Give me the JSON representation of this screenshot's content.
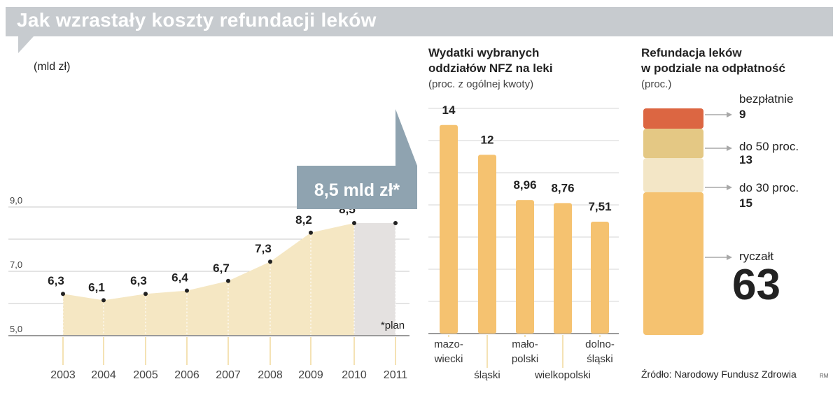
{
  "title": "Jak wzrastały koszty refundacji leków",
  "colors": {
    "banner": "#c7cbcf",
    "area": "#f5e7c3",
    "plan_area": "#e4e1e0",
    "bar": "#f5c270",
    "callout": "#8fa3b0",
    "seg_free": "#dc6642",
    "seg_50": "#e4c884",
    "seg_30": "#f3e6c6",
    "seg_flat": "#f5c270"
  },
  "chart_data": [
    {
      "type": "area",
      "unit_label": "(mld zł)",
      "x": [
        "2003",
        "2004",
        "2005",
        "2006",
        "2007",
        "2008",
        "2009",
        "2010",
        "2011"
      ],
      "values": [
        6.3,
        6.1,
        6.3,
        6.4,
        6.7,
        7.3,
        8.2,
        8.5,
        8.5
      ],
      "value_labels": [
        "6,3",
        "6,1",
        "6,3",
        "6,4",
        "6,7",
        "7,3",
        "8,2",
        "8,5",
        ""
      ],
      "yticks": [
        "9,0",
        "7,0",
        "5,0"
      ],
      "ylim": [
        5.0,
        9.0
      ],
      "callout": "8,5 mld zł*",
      "plan_note": "*plan"
    },
    {
      "type": "bar",
      "title_line1": "Wydatki wybranych",
      "title_line2": "oddziałów NFZ na leki",
      "subtitle": "(proc. z ogólnej kwoty)",
      "categories": [
        [
          "mazo-",
          "wiecki"
        ],
        [
          "śląski"
        ],
        [
          "mało-",
          "polski"
        ],
        [
          "wielkopolski"
        ],
        [
          "dolno-",
          "śląski"
        ]
      ],
      "values": [
        14,
        12,
        8.96,
        8.76,
        7.51
      ],
      "value_labels": [
        "14",
        "12",
        "8,96",
        "8,76",
        "7,51"
      ],
      "ylim": [
        0,
        15
      ]
    },
    {
      "type": "stacked-bar",
      "title_line1": "Refundacja leków",
      "title_line2": "w podziale na odpłatność",
      "subtitle": "(proc.)",
      "segments": [
        {
          "name": "bezpłatnie",
          "value": 9,
          "label": "9"
        },
        {
          "name": "do 50 proc.",
          "value": 13,
          "label": "13"
        },
        {
          "name": "do 30 proc.",
          "value": 15,
          "label": "15"
        },
        {
          "name": "ryczałt",
          "value": 63,
          "label": "63"
        }
      ]
    }
  ],
  "source": "Źródło: Narodowy Fundusz Zdrowia",
  "credit": "RM"
}
